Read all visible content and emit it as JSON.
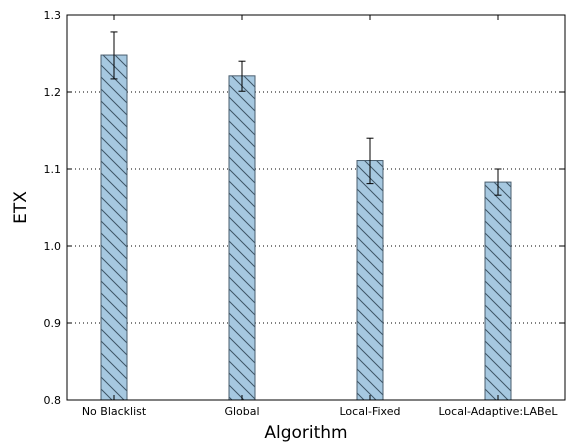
{
  "chart_data": {
    "type": "bar",
    "xlabel": "Algorithm",
    "ylabel": "ETX",
    "ylim": [
      0.8,
      1.3
    ],
    "yticks": [
      "0.8",
      "0.9",
      "1.0",
      "1.1",
      "1.2",
      "1.3"
    ],
    "grid": "horizontal-dotted",
    "bar_color": "#a6c8e0",
    "bar_edge_color": "#4a5e6e",
    "hatch_color": "#3e5566",
    "categories": [
      "No Blacklist",
      "Global",
      "Local-Fixed",
      "Local-Adaptive:LABeL"
    ],
    "values": [
      1.248,
      1.221,
      1.111,
      1.083
    ],
    "errors": [
      {
        "low": 1.217,
        "high": 1.278
      },
      {
        "low": 1.201,
        "high": 1.24
      },
      {
        "low": 1.081,
        "high": 1.14
      },
      {
        "low": 1.066,
        "high": 1.1
      }
    ]
  }
}
